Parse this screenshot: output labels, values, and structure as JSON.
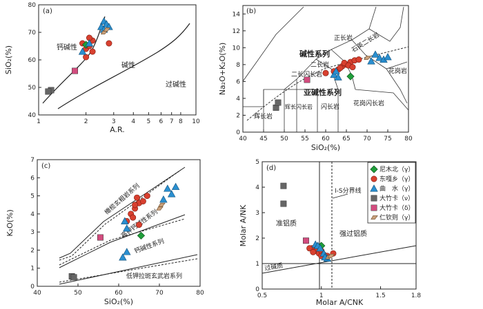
{
  "figure": {
    "title": "Granite geochemical classification diagrams (a)-(d)"
  },
  "colors": {
    "nimubei": "#1f9e3a",
    "dongga": "#d8402f",
    "qushui": "#2a8fd0",
    "dazhuka_v": "#666666",
    "dazhuka_d": "#d24c7e",
    "renqinze": "#c9a07a",
    "axis": "#222222"
  },
  "chart_data": [
    {
      "id": "a",
      "type": "scatter",
      "panel_label": "(a)",
      "xscale": "log",
      "xlim": [
        1,
        10
      ],
      "ylim": [
        40,
        80
      ],
      "xticks": [
        1,
        2,
        3,
        4,
        5,
        6,
        7,
        8,
        10
      ],
      "yticks": [
        40,
        50,
        60,
        70,
        80
      ],
      "xlabel": "A.R.",
      "ylabel": "SiO₂(%)",
      "field_labels": [
        "钙碱性",
        "碱性",
        "过碱性"
      ],
      "series": [
        {
          "name": "东嘎乡",
          "marker": "circle",
          "color_key": "dongga",
          "points": [
            [
              1.9,
              66
            ],
            [
              2.0,
              64
            ],
            [
              2.1,
              65
            ],
            [
              2.2,
              63
            ],
            [
              2.0,
              61
            ],
            [
              2.2,
              67
            ],
            [
              2.1,
              68
            ],
            [
              2.8,
              66
            ]
          ]
        },
        {
          "name": "尼木北",
          "marker": "diamond",
          "color_key": "nimubei",
          "points": [
            [
              2.0,
              65.5
            ]
          ]
        },
        {
          "name": "曲水",
          "marker": "triangle",
          "color_key": "qushui",
          "points": [
            [
              1.9,
              63
            ],
            [
              2.6,
              74
            ],
            [
              2.7,
              73
            ],
            [
              2.5,
              72
            ],
            [
              2.8,
              72
            ],
            [
              2.6,
              71
            ],
            [
              2.1,
              66
            ]
          ]
        },
        {
          "name": "大竹卡(v)",
          "marker": "square",
          "color_key": "dazhuka_v",
          "points": [
            [
              1.2,
              49
            ],
            [
              1.15,
              48.5
            ]
          ]
        },
        {
          "name": "大竹卡(δ)",
          "marker": "square",
          "color_key": "dazhuka_d",
          "points": [
            [
              1.7,
              56
            ]
          ]
        },
        {
          "name": "仁钦则",
          "marker": "parallelogram",
          "color_key": "renqinze",
          "points": [
            [
              2.6,
              70
            ],
            [
              2.7,
              71
            ]
          ]
        }
      ]
    },
    {
      "id": "b",
      "type": "scatter",
      "panel_label": "(b)",
      "xlim": [
        40,
        80
      ],
      "ylim": [
        0,
        15
      ],
      "xticks": [
        40,
        45,
        50,
        55,
        60,
        65,
        70,
        75,
        80
      ],
      "yticks": [
        0,
        2,
        4,
        6,
        8,
        10,
        12,
        14
      ],
      "xlabel": "SiO₂(%)",
      "ylabel": "Na₂O+K₂O(%)",
      "field_labels": [
        "正长岩",
        "石英二长岩",
        "碱性系列",
        "二长岩",
        "二长闪长岩",
        "花岗岩",
        "亚碱性系列",
        "辉长闪长岩",
        "闪长岩",
        "花岗闪长岩",
        "辉长岩"
      ],
      "series": [
        {
          "name": "东嘎乡",
          "marker": "circle",
          "color_key": "dongga",
          "points": [
            [
              62,
              7.2
            ],
            [
              63,
              7.4
            ],
            [
              64,
              7.8
            ],
            [
              65,
              8.0
            ],
            [
              66,
              8.3
            ],
            [
              67,
              8.5
            ],
            [
              63.5,
              7.6
            ],
            [
              64.5,
              8.2
            ],
            [
              65.5,
              7.9
            ],
            [
              66.5,
              7.7
            ],
            [
              68,
              8.6
            ],
            [
              60,
              7.0
            ]
          ]
        },
        {
          "name": "尼木北",
          "marker": "diamond",
          "color_key": "nimubei",
          "points": [
            [
              66,
              6.6
            ]
          ]
        },
        {
          "name": "曲水",
          "marker": "triangle",
          "color_key": "qushui",
          "points": [
            [
              62,
              6.8
            ],
            [
              63,
              6.5
            ],
            [
              72,
              9.2
            ],
            [
              73,
              8.8
            ],
            [
              74,
              8.6
            ],
            [
              75,
              8.9
            ],
            [
              71,
              8.4
            ],
            [
              62.5,
              7.2
            ]
          ]
        },
        {
          "name": "大竹卡(v)",
          "marker": "square",
          "color_key": "dazhuka_v",
          "points": [
            [
              48,
              2.9
            ],
            [
              48.5,
              3.5
            ]
          ]
        },
        {
          "name": "大竹卡(δ)",
          "marker": "square",
          "color_key": "dazhuka_d",
          "points": [
            [
              55.5,
              6.2
            ]
          ]
        },
        {
          "name": "仁钦则",
          "marker": "parallelogram",
          "color_key": "renqinze",
          "points": [
            [
              70,
              8.8
            ]
          ]
        }
      ]
    },
    {
      "id": "c",
      "type": "scatter",
      "panel_label": "(c)",
      "xlim": [
        40,
        80
      ],
      "ylim": [
        0,
        7
      ],
      "xticks": [
        40,
        50,
        60,
        70,
        80
      ],
      "yticks": [
        0,
        1,
        2,
        3,
        4,
        5,
        6,
        7
      ],
      "xlabel": "SiO₂(%)",
      "ylabel": "K₂O(%)",
      "field_labels": [
        "橄榄玄粗岩系列",
        "高钾钙碱性系列",
        "钙碱性系列",
        "低钾拉斑玄武岩系列"
      ],
      "series": [
        {
          "name": "东嘎乡",
          "marker": "circle",
          "color_key": "dongga",
          "points": [
            [
              63,
              4.0
            ],
            [
              64,
              4.3
            ],
            [
              65,
              4.6
            ],
            [
              64.5,
              4.9
            ],
            [
              66,
              4.7
            ],
            [
              63.5,
              3.8
            ],
            [
              62,
              3.6
            ],
            [
              67,
              5.0
            ],
            [
              65,
              3.4
            ],
            [
              64,
              4.5
            ]
          ]
        },
        {
          "name": "尼木北",
          "marker": "diamond",
          "color_key": "nimubei",
          "points": [
            [
              65.5,
              2.8
            ]
          ]
        },
        {
          "name": "曲水",
          "marker": "triangle",
          "color_key": "qushui",
          "points": [
            [
              62,
              3.2
            ],
            [
              61.5,
              3.6
            ],
            [
              72,
              5.4
            ],
            [
              73,
              5.1
            ],
            [
              74,
              5.5
            ],
            [
              71,
              4.8
            ],
            [
              62,
              1.9
            ],
            [
              61,
              1.6
            ]
          ]
        },
        {
          "name": "大竹卡(v)",
          "marker": "square",
          "color_key": "dazhuka_v",
          "points": [
            [
              48.5,
              0.55
            ],
            [
              49,
              0.5
            ]
          ]
        },
        {
          "name": "大竹卡(δ)",
          "marker": "square",
          "color_key": "dazhuka_d",
          "points": [
            [
              55.5,
              2.7
            ]
          ]
        },
        {
          "name": "仁钦则",
          "marker": "parallelogram",
          "color_key": "renqinze",
          "points": [
            [
              70,
              4.3
            ],
            [
              70.5,
              4.5
            ]
          ]
        }
      ]
    },
    {
      "id": "d",
      "type": "scatter",
      "panel_label": "(d)",
      "xlim": [
        0.5,
        1.8
      ],
      "ylim": [
        0,
        5
      ],
      "xticks": [
        0.5,
        1.0,
        1.5,
        1.8
      ],
      "yticks": [
        0,
        1,
        2,
        3,
        4,
        5
      ],
      "xlabel": "Molar A/CNK",
      "ylabel": "Molar A/NK",
      "field_labels": [
        "准铝质",
        "强过铝质",
        "过碱质",
        "I-S分界线"
      ],
      "legend": [
        {
          "label": "尼木北（γ）",
          "marker": "diamond",
          "color_key": "nimubei"
        },
        {
          "label": "东嘎乡（γ）",
          "marker": "circle",
          "color_key": "dongga"
        },
        {
          "label": "曲　水（γ）",
          "marker": "triangle",
          "color_key": "qushui"
        },
        {
          "label": "大竹卡（ν）",
          "marker": "square",
          "color_key": "dazhuka_v"
        },
        {
          "label": "大竹卡（δ）",
          "marker": "square",
          "color_key": "dazhuka_d"
        },
        {
          "label": "仁钦则（γ）",
          "marker": "parallelogram",
          "color_key": "renqinze"
        }
      ],
      "series": [
        {
          "name": "东嘎乡",
          "marker": "circle",
          "color_key": "dongga",
          "points": [
            [
              0.92,
              1.6
            ],
            [
              0.95,
              1.5
            ],
            [
              0.98,
              1.4
            ],
            [
              1.0,
              1.5
            ],
            [
              1.02,
              1.35
            ],
            [
              0.96,
              1.7
            ],
            [
              0.9,
              1.6
            ],
            [
              1.05,
              1.3
            ],
            [
              1.1,
              1.4
            ],
            [
              0.93,
              1.45
            ],
            [
              1.0,
              1.3
            ]
          ]
        },
        {
          "name": "尼木北",
          "marker": "diamond",
          "color_key": "nimubei",
          "points": [
            [
              1.0,
              1.7
            ]
          ]
        },
        {
          "name": "曲水",
          "marker": "triangle",
          "color_key": "qushui",
          "points": [
            [
              0.95,
              1.75
            ],
            [
              0.97,
              1.7
            ],
            [
              1.02,
              1.4
            ],
            [
              1.05,
              1.2
            ],
            [
              0.99,
              1.6
            ],
            [
              1.03,
              1.25
            ]
          ]
        },
        {
          "name": "大竹卡(v)",
          "marker": "square",
          "color_key": "dazhuka_v",
          "points": [
            [
              0.68,
              4.05
            ],
            [
              0.68,
              3.35
            ]
          ]
        },
        {
          "name": "大竹卡(δ)",
          "marker": "square",
          "color_key": "dazhuka_d",
          "points": [
            [
              0.87,
              1.9
            ]
          ]
        },
        {
          "name": "仁钦则",
          "marker": "parallelogram",
          "color_key": "renqinze",
          "points": [
            [
              1.06,
              1.25
            ],
            [
              1.08,
              1.3
            ]
          ]
        }
      ]
    }
  ]
}
